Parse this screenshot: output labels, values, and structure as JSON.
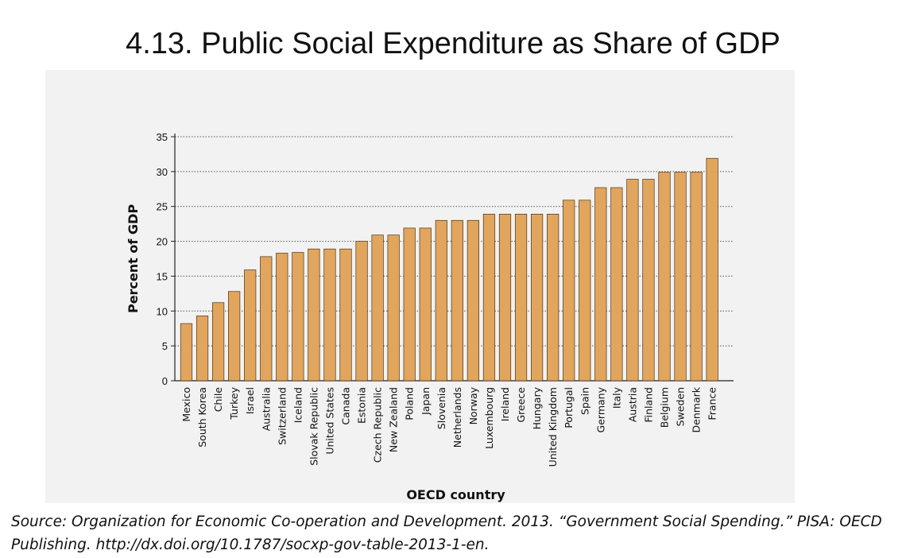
{
  "page": {
    "title": "4.13. Public Social Expenditure as Share of GDP",
    "source": "Source: Organization for Economic Co-operation and Development. 2013. “Government Social Spending.” PISA: OECD Publishing. http://dx.doi.org/10.1787/socxp-gov-table-2013-1-en."
  },
  "chart_data": {
    "type": "bar",
    "xlabel": "OECD country",
    "ylabel": "Percent of GDP",
    "ylim": [
      0,
      35
    ],
    "yticks": [
      0,
      5,
      10,
      15,
      20,
      25,
      30,
      35
    ],
    "grid": "horizontal dotted",
    "categories": [
      "Mexico",
      "South Korea",
      "Chile",
      "Turkey",
      "Israel",
      "Australia",
      "Switzerland",
      "Iceland",
      "Slovak Republic",
      "United States",
      "Canada",
      "Estonia",
      "Czech Republic",
      "New Zealand",
      "Poland",
      "Japan",
      "Slovenia",
      "Netherlands",
      "Norway",
      "Luxembourg",
      "Ireland",
      "Greece",
      "Hungary",
      "United Kingdom",
      "Portugal",
      "Spain",
      "Germany",
      "Italy",
      "Austria",
      "Finland",
      "Belgium",
      "Sweden",
      "Denmark",
      "France"
    ],
    "values": [
      8.2,
      9.3,
      11.2,
      12.8,
      15.9,
      17.8,
      18.3,
      18.4,
      18.9,
      18.9,
      18.9,
      20.0,
      20.9,
      20.9,
      21.9,
      21.9,
      23.0,
      23.0,
      23.0,
      23.9,
      23.9,
      23.9,
      23.9,
      23.9,
      25.9,
      25.9,
      27.7,
      27.7,
      28.9,
      28.9,
      29.9,
      29.9,
      29.9,
      31.9
    ],
    "colors": {
      "bar": "#e2a55e",
      "bar_stroke": "#4a3515",
      "grid": "#555555",
      "panel": "#f2f2f2"
    }
  }
}
